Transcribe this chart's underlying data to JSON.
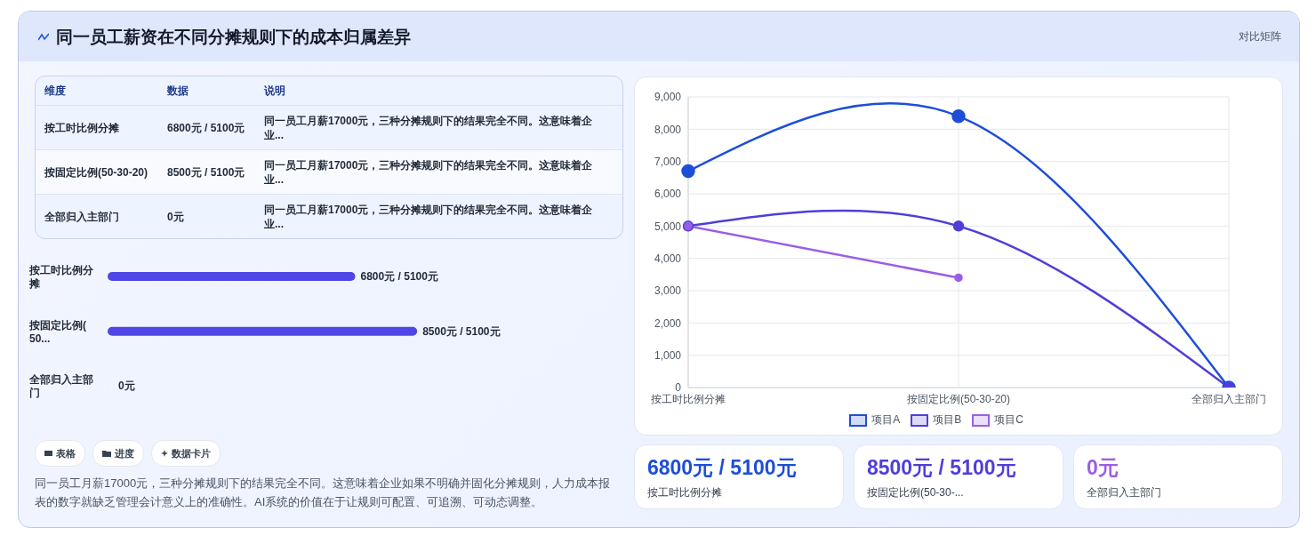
{
  "chart_data": [
    {
      "type": "other",
      "title": "同一员工薪资在不同分摊规则下的成本归属差异",
      "subtitle": "对比矩阵"
    },
    {
      "type": "other",
      "annotations": [
        "维度",
        "数据",
        "说明",
        "按工时比例分摊",
        "6800元 / 5100元",
        "同一员工月薪17000元，三种分摊规则下的结果完全不同。这意味着企业...",
        "按固定比例(50-30-20)",
        "8500元 / 5100元",
        "同一员工月薪17000元，三种分摊规则下的结果完全不同。这意味着企业...",
        "全部归入主部门",
        "0元",
        "同一员工月薪17000元，三种分摊规则下的结果完全不同。这意味着企业..."
      ]
    },
    {
      "type": "bar",
      "orientation": "horizontal",
      "categories": [
        "按工时比例分摊",
        "按固定比例(50...",
        "全部归入主部门"
      ],
      "values": [
        6800,
        8500,
        0
      ],
      "color": "#4f46e5",
      "value_labels": [
        "6800元 / 5100元",
        "8500元 / 5100元",
        "0元"
      ]
    },
    {
      "type": "other",
      "annotations": [
        "表格",
        "进度",
        "数据卡片"
      ]
    },
    {
      "type": "other",
      "annotations": [
        "同一员工月薪17000元，三种分摊规则下的结果完全不同。这意味着企业如果不明确并固化分摊规则，人力成本报表的数字就缺乏管理会计意义上的准确性。AI系统的价值在于让规则可配置、可追溯、可动态调整。"
      ]
    },
    {
      "type": "line",
      "categories": [
        "按工时比例分摊",
        "按固定比例(50-30-20)",
        "全部归入主部门"
      ],
      "series": [
        {
          "name": "项目A",
          "color": "#1d4ed8",
          "values": [
            6700,
            8400,
            0
          ]
        },
        {
          "name": "项目B",
          "color": "#4f3fd8",
          "values": [
            5000,
            5000,
            0
          ]
        },
        {
          "name": "项目C",
          "color": "#9b5de5",
          "values": [
            5000,
            3400,
            null
          ]
        }
      ],
      "ylim": [
        0,
        9000
      ],
      "yticks": [
        0,
        {
          "value": 1000,
          "label": "1,000"
        },
        {
          "value": 2000,
          "label": "2,000"
        },
        {
          "value": 3000,
          "label": "3,000"
        },
        {
          "value": 4000,
          "label": "4,000"
        },
        {
          "value": 5000,
          "label": "5,000"
        },
        {
          "value": 6000,
          "label": "6,000"
        },
        {
          "value": 7000,
          "label": "7,000"
        },
        {
          "value": 8000,
          "label": "8,000"
        },
        {
          "value": 9000,
          "label": "9,000"
        }
      ],
      "grid": true,
      "legend": "bottom",
      "marker": "circle",
      "line_style": "solid"
    },
    {
      "type": "other",
      "annotations": [
        "6800元 / 5100元",
        "按工时比例分摊",
        "8500元 / 5100元",
        "按固定比例(50-30-...",
        "0元",
        "全部归入主部门"
      ],
      "colors": [
        "#1d4ed8",
        "#4f3fd8",
        "#9b5de5"
      ]
    }
  ]
}
